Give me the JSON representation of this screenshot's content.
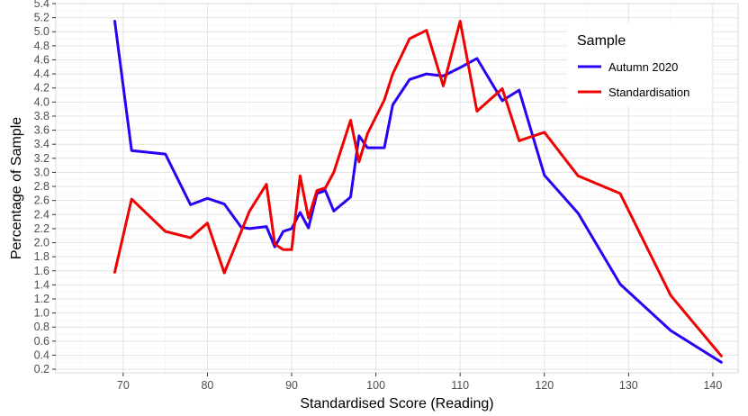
{
  "chart_data": {
    "type": "line",
    "xlabel": "Standardised Score (Reading)",
    "ylabel": "Percentage of Sample",
    "xlim": [
      62,
      143
    ],
    "ylim": [
      0.15,
      5.4
    ],
    "x_ticks": [
      70,
      80,
      90,
      100,
      110,
      120,
      130,
      140
    ],
    "x_tick_labels": [
      "70",
      "80",
      "90",
      "100",
      "110",
      "120",
      "130",
      "140"
    ],
    "y_ticks": [
      0.2,
      0.4,
      0.6,
      0.8,
      1.0,
      1.2,
      1.4,
      1.6,
      1.8,
      2.0,
      2.2,
      2.4,
      2.6,
      2.8,
      3.0,
      3.2,
      3.4,
      3.6,
      3.8,
      4.0,
      4.2,
      4.4,
      4.6,
      4.8,
      5.0,
      5.2,
      5.4
    ],
    "y_tick_labels": [
      "0.2",
      "0.4",
      "0.6",
      "0.8",
      "1.0",
      "1.2",
      "1.4",
      "1.6",
      "1.8",
      "2.0",
      "2.2",
      "2.4",
      "2.6",
      "2.8",
      "3.0",
      "3.2",
      "3.4",
      "3.6",
      "3.8",
      "4.0",
      "4.2",
      "4.4",
      "4.6",
      "4.8",
      "5.0",
      "5.2",
      "5.4"
    ],
    "grid": true,
    "legend": {
      "title": "Sample",
      "position": "top-right"
    },
    "series": [
      {
        "name": "Autumn 2020",
        "color": "#2b00f5",
        "x": [
          69,
          71,
          75,
          78,
          80,
          82,
          84,
          85,
          87,
          88,
          89,
          90,
          91,
          92,
          93,
          94,
          95,
          97,
          98,
          99,
          101,
          102,
          104,
          106,
          108,
          110,
          112,
          115,
          117,
          120,
          124,
          129,
          135,
          141
        ],
        "y": [
          5.15,
          3.31,
          3.26,
          2.54,
          2.63,
          2.55,
          2.22,
          2.2,
          2.23,
          1.94,
          2.16,
          2.2,
          2.43,
          2.21,
          2.7,
          2.74,
          2.45,
          2.65,
          3.52,
          3.35,
          3.35,
          3.96,
          4.32,
          4.4,
          4.37,
          4.49,
          4.62,
          4.02,
          4.17,
          2.96,
          2.42,
          1.41,
          0.75,
          0.3
        ]
      },
      {
        "name": "Standardisation",
        "color": "#f00000",
        "x": [
          69,
          71,
          75,
          78,
          80,
          82,
          85,
          87,
          88,
          89,
          90,
          91,
          92,
          93,
          94,
          95,
          97,
          98,
          99,
          101,
          102,
          104,
          106,
          108,
          110,
          112,
          115,
          117,
          120,
          124,
          129,
          135,
          141
        ],
        "y": [
          1.58,
          2.62,
          2.16,
          2.07,
          2.28,
          1.57,
          2.45,
          2.83,
          1.98,
          1.9,
          1.9,
          2.95,
          2.35,
          2.74,
          2.78,
          3.0,
          3.74,
          3.15,
          3.55,
          4.03,
          4.4,
          4.9,
          5.02,
          4.23,
          5.15,
          3.87,
          4.19,
          3.45,
          3.57,
          2.95,
          2.7,
          1.25,
          0.39
        ]
      }
    ]
  }
}
